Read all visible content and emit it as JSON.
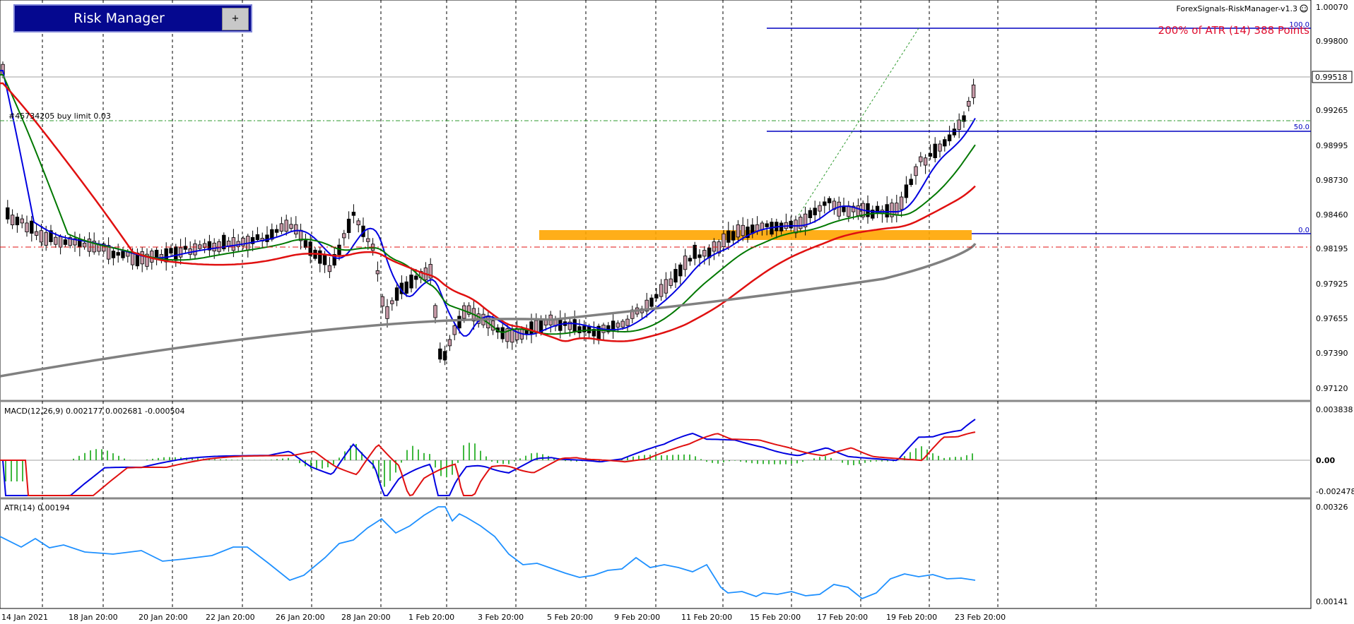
{
  "panel": {
    "title": "Risk Manager",
    "button": "+"
  },
  "indicator_name": "ForexSignals-RiskManager-v1.3",
  "smiley_icon": "smiley-icon",
  "atr_note": "200% of ATR (14) 388 Points",
  "order_label": "#45734205 buy limit 0.03",
  "fib_labels": [
    "100.0",
    "50.0",
    "0.0"
  ],
  "price_axis": [
    "1.00070",
    "0.99800",
    "0.99265",
    "0.98995",
    "0.98730",
    "0.98460",
    "0.98195",
    "0.97925",
    "0.97655",
    "0.97390",
    "0.97120"
  ],
  "current_price": "0.99518",
  "macd_label": "MACD(12,26,9) 0.002177 0.002681 -0.000504",
  "macd_axis": [
    "0.003838",
    "0.00",
    "-0.002478"
  ],
  "atr_label": "ATR(14) 0.00194",
  "atr_axis": [
    "0.00326",
    "0.00141"
  ],
  "time_axis": [
    "14 Jan 2021",
    "18 Jan 20:00",
    "20 Jan 20:00",
    "22 Jan 20:00",
    "26 Jan 20:00",
    "28 Jan 20:00",
    "1 Feb 20:00",
    "3 Feb 20:00",
    "5 Feb 20:00",
    "9 Feb 20:00",
    "11 Feb 20:00",
    "15 Feb 20:00",
    "17 Feb 20:00",
    "19 Feb 20:00",
    "23 Feb 20:00"
  ],
  "colors": {
    "bull": "#c79aa8",
    "bear": "#000000",
    "ma_fast": "#0000e0",
    "ma_mid": "#007800",
    "ma_slow": "#e01010",
    "ma_long": "#808080",
    "zone": "#ffa500",
    "macd": "#0000e0",
    "signal": "#e01010",
    "hist": "#00a000",
    "atr": "#1e90ff"
  }
}
